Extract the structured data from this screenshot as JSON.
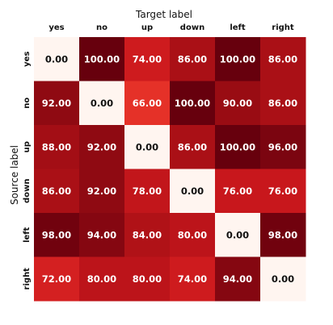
{
  "chart_data": {
    "type": "heatmap",
    "xlabel": "Target label",
    "ylabel": "Source label",
    "x_categories": [
      "yes",
      "no",
      "up",
      "down",
      "left",
      "right"
    ],
    "y_categories": [
      "yes",
      "no",
      "up",
      "down",
      "left",
      "right"
    ],
    "values": [
      [
        0.0,
        100.0,
        74.0,
        86.0,
        100.0,
        86.0
      ],
      [
        92.0,
        0.0,
        66.0,
        100.0,
        90.0,
        86.0
      ],
      [
        88.0,
        92.0,
        0.0,
        86.0,
        100.0,
        96.0
      ],
      [
        86.0,
        92.0,
        78.0,
        0.0,
        76.0,
        76.0
      ],
      [
        98.0,
        94.0,
        84.0,
        80.0,
        0.0,
        98.0
      ],
      [
        72.0,
        80.0,
        80.0,
        74.0,
        94.0,
        0.0
      ]
    ],
    "value_format": "0.00",
    "colormap": "Reds",
    "color_range": [
      0,
      100
    ],
    "x_tick_position": "top",
    "grid": false,
    "legend": "none"
  }
}
